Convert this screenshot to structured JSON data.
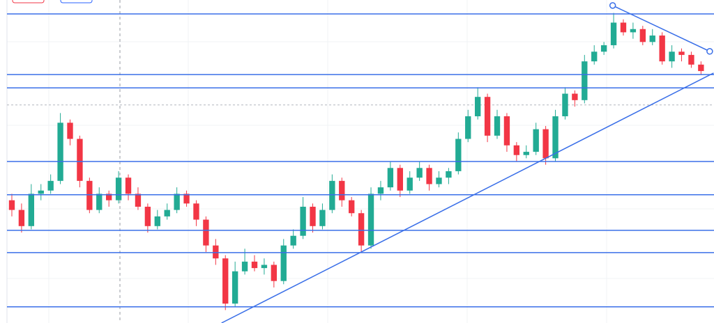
{
  "chart_data": {
    "type": "candlestick",
    "xlim": [
      -1.22,
      72.34
    ],
    "ylim": [
      0,
      100
    ],
    "up_color": "#22ab94",
    "down_color": "#f23645",
    "line_color": "#3a6fe8",
    "open": [
      38,
      35,
      30,
      40,
      41,
      44,
      62,
      57,
      44,
      35,
      40,
      38,
      45,
      40,
      36,
      30,
      33,
      35,
      40,
      37,
      32,
      24,
      20,
      6,
      16,
      19,
      17,
      18,
      13,
      24,
      27,
      36,
      30,
      35,
      44,
      38,
      34,
      24,
      40,
      42,
      48,
      41,
      45,
      48,
      43,
      45,
      47,
      57,
      64,
      70,
      58,
      64,
      55,
      52,
      53,
      60,
      51,
      64,
      71,
      69,
      81,
      84,
      86,
      93,
      90,
      91,
      87,
      89,
      81,
      84,
      83,
      80
    ],
    "high": [
      40,
      37,
      43,
      43,
      46,
      65,
      63,
      58,
      45,
      42,
      41,
      47,
      46,
      42,
      37,
      35,
      37,
      42,
      41,
      38,
      33,
      26,
      21,
      19,
      23,
      21,
      20,
      19,
      26,
      29,
      39,
      37,
      37,
      46,
      45,
      39,
      35,
      42,
      44,
      50,
      49,
      47,
      50,
      49,
      47,
      48,
      59,
      66,
      73,
      71,
      66,
      65,
      56,
      55,
      62,
      61,
      66,
      73,
      72,
      83,
      86,
      87,
      96,
      94,
      93,
      92,
      91,
      90,
      86,
      85,
      84,
      81
    ],
    "low": [
      33,
      28,
      29,
      38,
      40,
      43,
      55,
      42,
      34,
      34,
      36,
      37,
      38,
      35,
      28,
      29,
      32,
      34,
      36,
      30,
      22,
      18,
      4,
      5,
      15,
      16,
      15,
      11,
      12,
      23,
      26,
      28,
      29,
      34,
      36,
      33,
      22,
      23,
      38,
      41,
      39,
      40,
      44,
      41,
      42,
      43,
      46,
      56,
      63,
      56,
      57,
      53,
      50,
      51,
      52,
      49,
      50,
      63,
      67,
      68,
      80,
      83,
      85,
      89,
      88,
      86,
      86,
      80,
      79,
      81,
      79,
      77
    ],
    "close": [
      35,
      30,
      40,
      41,
      44,
      62,
      57,
      44,
      35,
      40,
      38,
      45,
      40,
      36,
      30,
      33,
      35,
      40,
      37,
      32,
      24,
      20,
      6,
      16,
      19,
      17,
      18,
      13,
      24,
      27,
      36,
      30,
      35,
      44,
      38,
      34,
      24,
      40,
      42,
      48,
      41,
      45,
      48,
      43,
      45,
      47,
      57,
      64,
      70,
      58,
      64,
      55,
      52,
      53,
      60,
      51,
      64,
      71,
      69,
      81,
      84,
      86,
      93,
      90,
      91,
      87,
      89,
      81,
      84,
      83,
      80,
      78
    ],
    "hlines": [
      95.7,
      76.9,
      72.8,
      50.0,
      39.7,
      28.7,
      21.8,
      5.0
    ],
    "price_line": 67.5,
    "trendlines": [
      {
        "x": [
          21.6,
          72.3
        ],
        "y": [
          0,
          77.4
        ],
        "handles": false
      },
      {
        "x": [
          61.9,
          71.9
        ],
        "y": [
          98.3,
          84.1
        ],
        "handles": true
      }
    ]
  }
}
